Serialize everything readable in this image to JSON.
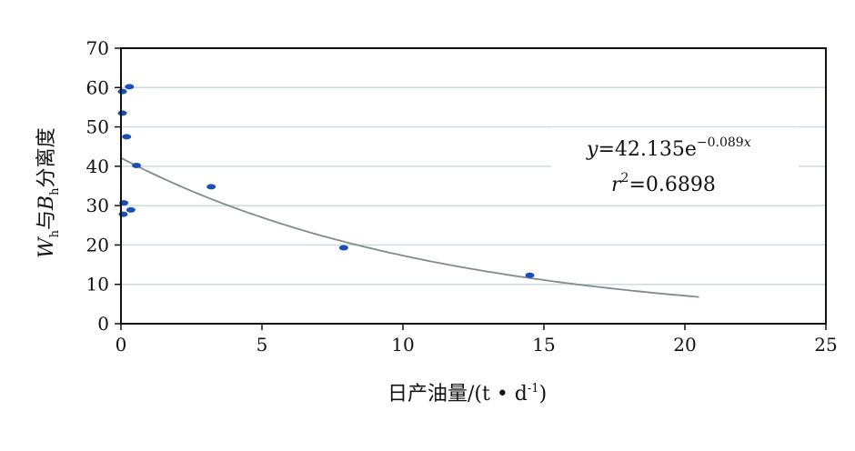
{
  "chart_data": {
    "type": "scatter",
    "xlabel": {
      "text": "日产油量/(t • d",
      "sup": "-1",
      "close": ")"
    },
    "ylabel": {
      "w": "W",
      "w_sub": "h",
      "mid": "与",
      "b": "B",
      "b_sub": "h",
      "tail": "分离度"
    },
    "xlim": [
      0,
      25
    ],
    "ylim": [
      0,
      70
    ],
    "x_ticks": [
      "0",
      "5",
      "10",
      "15",
      "20",
      "25"
    ],
    "y_ticks": [
      "0",
      "10",
      "20",
      "30",
      "40",
      "50",
      "60",
      "70"
    ],
    "grid": "horizontal",
    "series": [
      {
        "values": [
          {
            "x": 0.05,
            "y": 59.0
          },
          {
            "x": 0.3,
            "y": 60.2
          },
          {
            "x": 0.05,
            "y": 53.5
          },
          {
            "x": 0.2,
            "y": 47.5
          },
          {
            "x": 0.55,
            "y": 40.2
          },
          {
            "x": 3.2,
            "y": 34.8
          },
          {
            "x": 0.1,
            "y": 30.7
          },
          {
            "x": 0.35,
            "y": 28.9
          },
          {
            "x": 0.08,
            "y": 27.8
          },
          {
            "x": 7.9,
            "y": 19.3
          },
          {
            "x": 14.5,
            "y": 12.3
          }
        ],
        "color": "#1a4fb8"
      }
    ],
    "trendline": {
      "a": 42.135,
      "b": -0.089,
      "x_range": [
        0,
        20.5
      ],
      "color": "#7f8c8c"
    },
    "equation": {
      "y": "y",
      "eq": "=42.135e",
      "exp": "−0.089",
      "exp_x": "x"
    },
    "r2": {
      "r": "r",
      "sup": "2",
      "value": "=0.6898"
    }
  }
}
